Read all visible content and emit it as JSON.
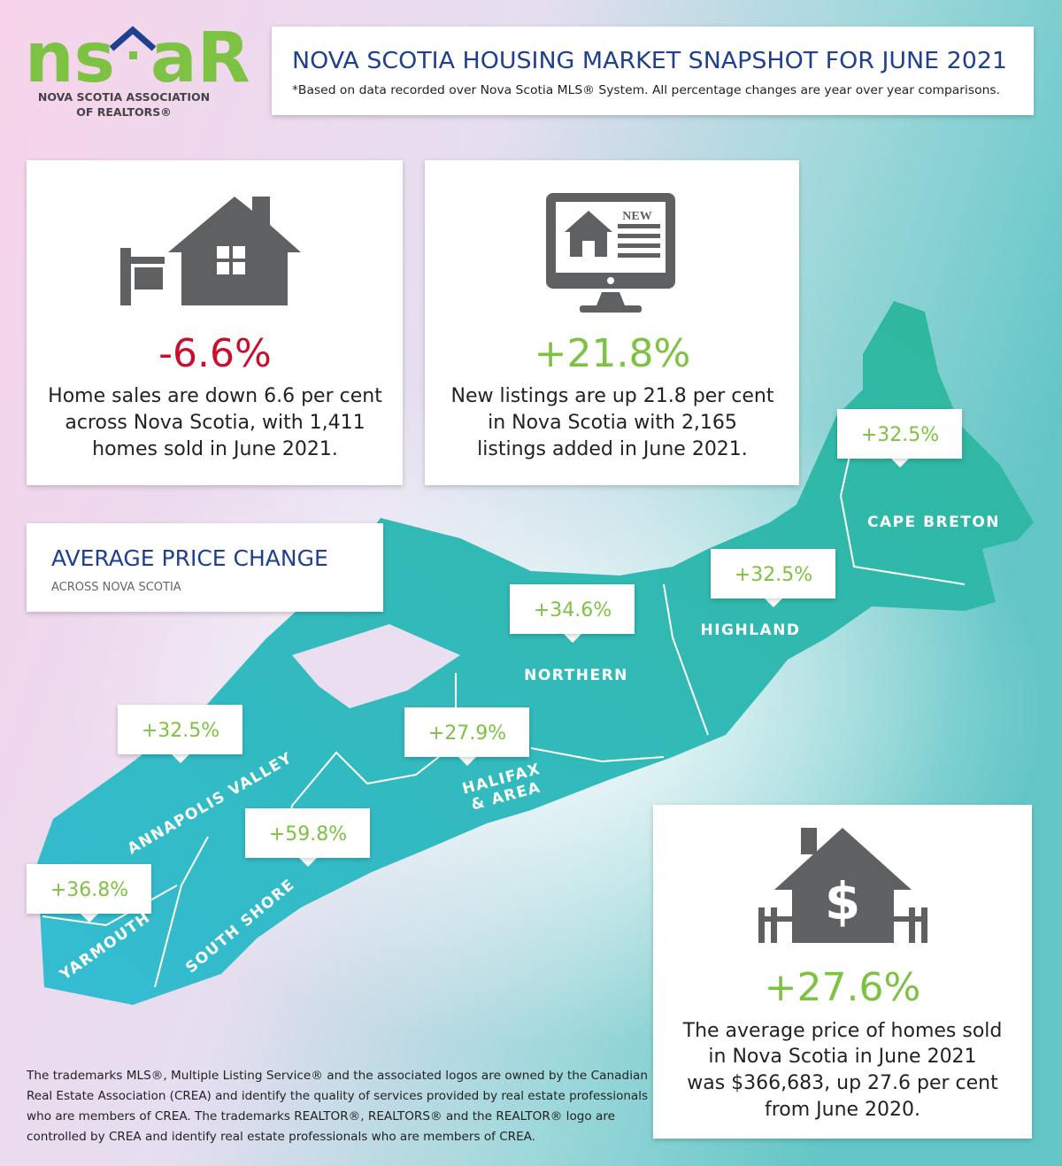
{
  "logo": {
    "wordmark_left": "ns",
    "wordmark_right": "aR",
    "lines": [
      "NOVA SCOTIA ASSOCIATION",
      "OF REALTORS®"
    ]
  },
  "header": {
    "title": "NOVA SCOTIA HOUSING MARKET SNAPSHOT FOR JUNE 2021",
    "note": "*Based on data recorded over Nova Scotia MLS® System. All percentage changes are year over year comparisons."
  },
  "cards": [
    {
      "change": "-6.6%",
      "lines": [
        "Home sales are down 6.6 per cent",
        "across Nova Scotia, with 1,411",
        "homes sold in June 2021."
      ]
    },
    {
      "icon_label": "NEW",
      "change": "+21.8%",
      "lines": [
        "New listings are up 21.8 per cent",
        "in Nova Scotia with 2,165",
        "listings added in June 2021."
      ]
    }
  ],
  "price_section": {
    "title": "AVERAGE PRICE CHANGE",
    "subtitle": "ACROSS NOVA SCOTIA"
  },
  "regions": [
    {
      "name": [
        "CAPE BRETON"
      ],
      "change": "+32.5%"
    },
    {
      "name": [
        "HIGHLAND"
      ],
      "change": "+32.5%"
    },
    {
      "name": [
        "NORTHERN"
      ],
      "change": "+34.6%"
    },
    {
      "name": [
        "HALIFAX",
        "& AREA"
      ],
      "change": "+27.9%"
    },
    {
      "name": [
        "ANNAPOLIS VALLEY"
      ],
      "change": "+32.5%"
    },
    {
      "name": [
        "SOUTH SHORE"
      ],
      "change": "+59.8%"
    },
    {
      "name": [
        "YARMOUTH"
      ],
      "change": "+36.8%"
    }
  ],
  "summary": {
    "change": "+27.6%",
    "lines": [
      "The average price of homes sold",
      "in Nova Scotia in June 2021",
      "was $366,683, up 27.6 per cent",
      "from June 2020."
    ]
  },
  "footer": {
    "lines": [
      "The trademarks MLS®, Multiple Listing Service® and the associated logos are owned by the Canadian",
      "Real Estate Association (CREA) and identify the quality of services provided by real estate professionals",
      "who are members of CREA. The trademarks REALTOR®, REALTORS® and the REALTOR® logo are",
      "controlled by CREA and identify real estate professionals who are members of CREA."
    ]
  }
}
